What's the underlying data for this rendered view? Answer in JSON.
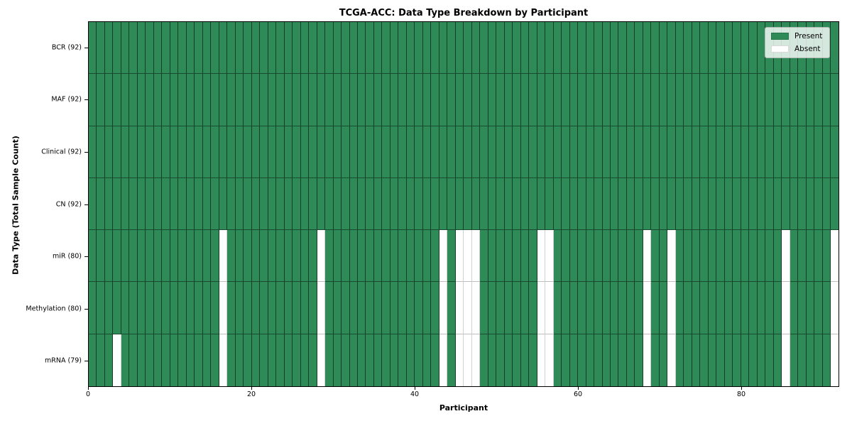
{
  "chart_data": {
    "type": "heatmap",
    "title": "TCGA-ACC: Data Type Breakdown by Participant",
    "xlabel": "Participant",
    "ylabel": "Data Type (Total Sample Count)",
    "x_ticks": [
      0,
      20,
      40,
      60,
      80
    ],
    "x_range": [
      0,
      92
    ],
    "n_participants": 92,
    "grid": true,
    "rows": [
      {
        "label": "BCR (92)",
        "data_type": "BCR",
        "total_samples": 92,
        "absent_participants": []
      },
      {
        "label": "MAF (92)",
        "data_type": "MAF",
        "total_samples": 92,
        "absent_participants": []
      },
      {
        "label": "Clinical (92)",
        "data_type": "Clinical",
        "total_samples": 92,
        "absent_participants": []
      },
      {
        "label": "CN (92)",
        "data_type": "CN",
        "total_samples": 92,
        "absent_participants": []
      },
      {
        "label": "miR (80)",
        "data_type": "miR",
        "total_samples": 80,
        "absent_participants": [
          16,
          28,
          43,
          45,
          46,
          47,
          55,
          56,
          68,
          71,
          85,
          91
        ]
      },
      {
        "label": "Methylation (80)",
        "data_type": "Methylation",
        "total_samples": 80,
        "absent_participants": [
          16,
          28,
          43,
          45,
          46,
          47,
          55,
          56,
          68,
          71,
          85,
          91
        ]
      },
      {
        "label": "mRNA (79)",
        "data_type": "mRNA",
        "total_samples": 79,
        "absent_participants": [
          3,
          16,
          28,
          43,
          45,
          46,
          47,
          55,
          56,
          68,
          71,
          85,
          91
        ]
      }
    ],
    "legend": {
      "position": "upper right",
      "entries": [
        {
          "label": "Present",
          "color": "#2e8b57"
        },
        {
          "label": "Absent",
          "color": "#ffffff"
        }
      ]
    },
    "colors": {
      "present": "#2e8b57",
      "absent": "#ffffff",
      "cell_edge": "#000000"
    }
  }
}
